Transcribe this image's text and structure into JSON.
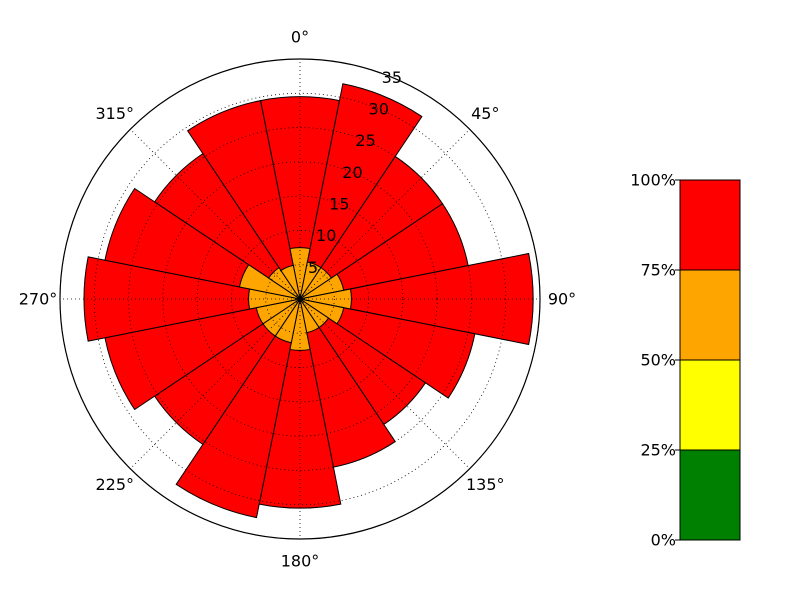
{
  "chart_data": [
    {
      "type": "polar-bar",
      "direction": "clockwise",
      "zero_location": "top",
      "angle_ticks": [
        "0°",
        "45°",
        "90°",
        "135°",
        "180°",
        "225°",
        "270°",
        "315°"
      ],
      "radial_ticks": [
        "5",
        "10",
        "15",
        "20",
        "25",
        "30",
        "35"
      ],
      "rlim": [
        0,
        35
      ],
      "grid": true,
      "directions_deg": [
        0,
        22.5,
        45,
        67.5,
        90,
        112.5,
        135,
        157.5,
        180,
        202.5,
        225,
        247.5,
        270,
        292.5,
        315,
        337.5
      ],
      "bar_width_deg": 22.5,
      "series": [
        {
          "color": "#ffa500",
          "values": [
            7.5,
            5.5,
            5.5,
            6.5,
            7.5,
            6.5,
            5.0,
            5.0,
            7.5,
            6.5,
            6.5,
            6.5,
            7.5,
            9.0,
            5.5,
            5.0
          ]
        },
        {
          "color": "#ff0000",
          "values": [
            29.5,
            32.0,
            25.0,
            25.0,
            34.0,
            26.0,
            22.0,
            25.0,
            30.5,
            32.5,
            25.5,
            29.0,
            31.5,
            29.0,
            25.5,
            29.5
          ]
        }
      ]
    },
    {
      "type": "color-scale",
      "tick_labels": [
        "0%",
        "25%",
        "50%",
        "75%",
        "100%"
      ],
      "bands": [
        "#008000",
        "#ffff00",
        "#ffa500",
        "#ff0000"
      ]
    }
  ]
}
